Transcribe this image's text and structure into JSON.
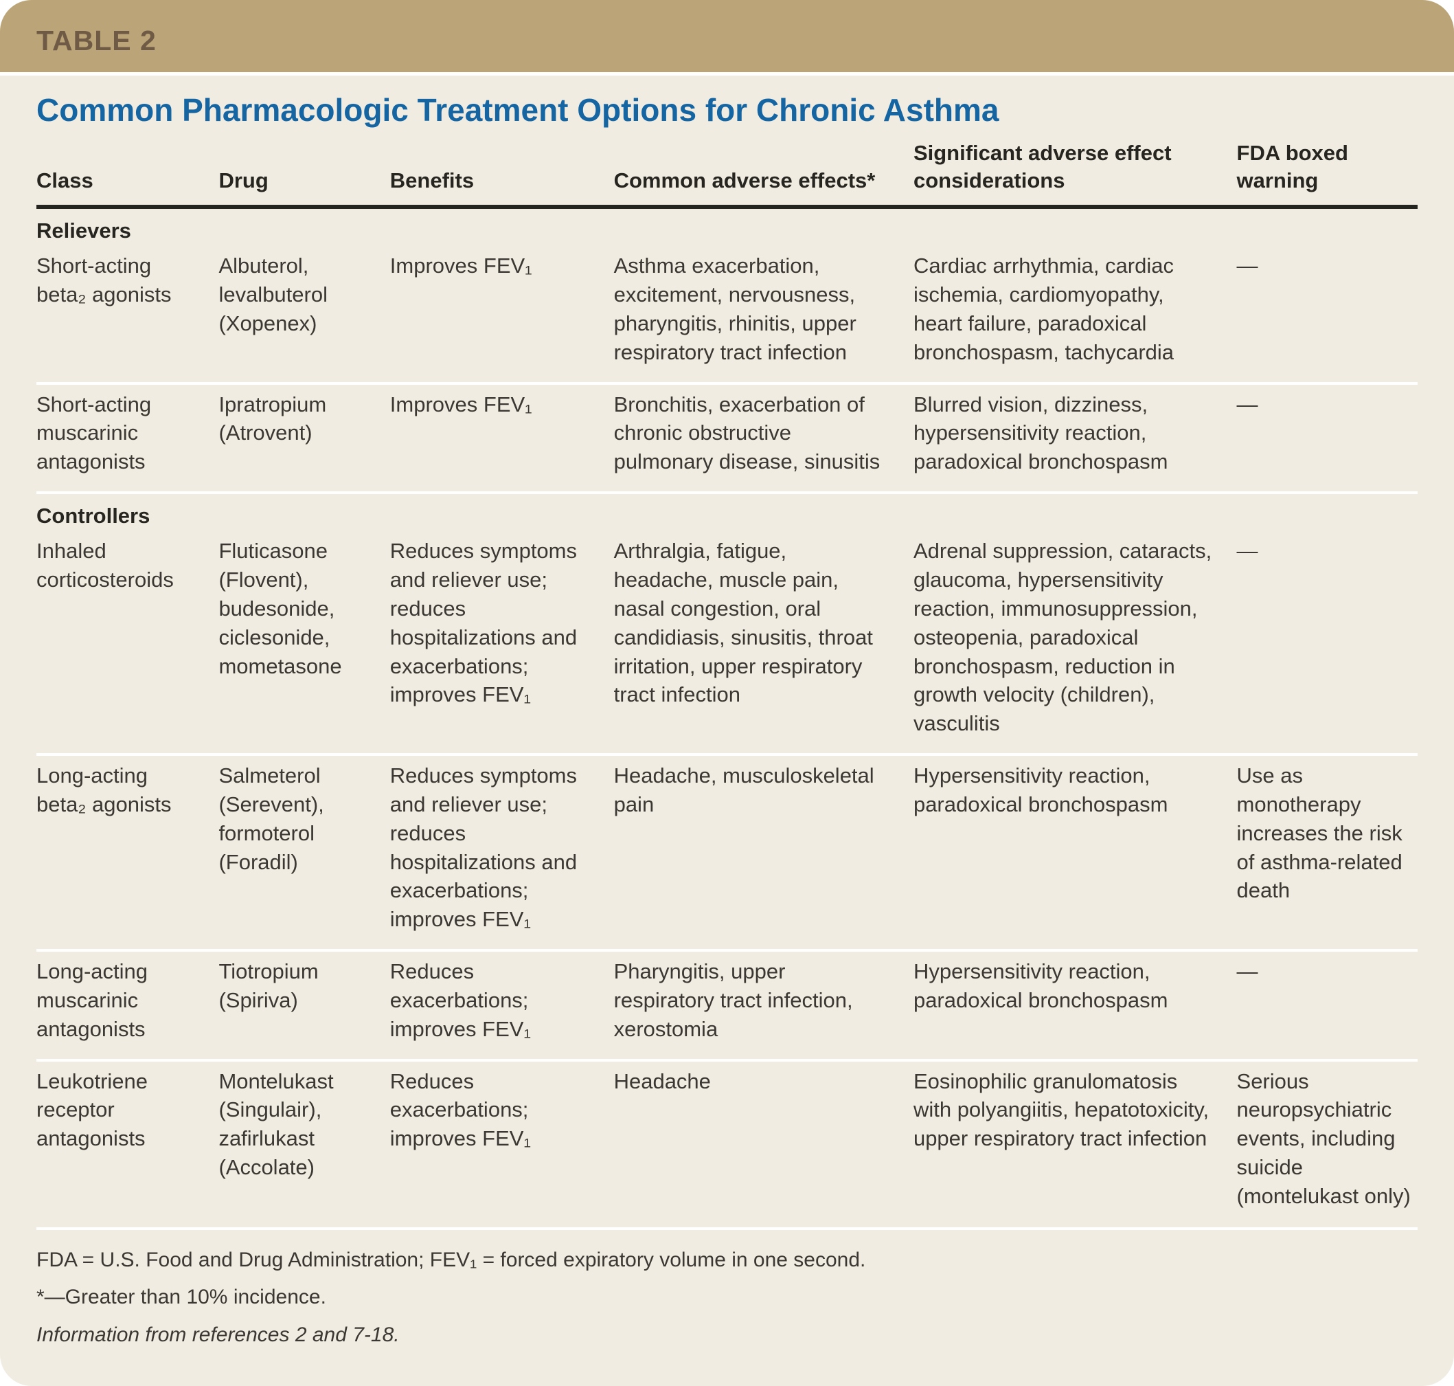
{
  "table_label": "TABLE 2",
  "title": "Common Pharmacologic Treatment Options for Chronic Asthma",
  "colors": {
    "band_bg": "#bba478",
    "band_text": "#6f5a45",
    "card_bg": "#f1ece1",
    "title_blue": "#1565a3",
    "heading_text": "#272520",
    "body_text": "#3b3833",
    "rule_dark": "#26241f",
    "rule_white": "#ffffff",
    "page_bg": "#ffffff"
  },
  "columns": [
    {
      "key": "class",
      "label": "Class"
    },
    {
      "key": "drug",
      "label": "Drug"
    },
    {
      "key": "benefits",
      "label": "Benefits"
    },
    {
      "key": "adverse_effects",
      "label": "Common adverse effects*"
    },
    {
      "key": "considerations",
      "label": "Significant adverse effect considerations"
    },
    {
      "key": "fda_warning",
      "label": "FDA boxed warning"
    }
  ],
  "sections": [
    {
      "name": "Relievers",
      "rows": [
        {
          "class": "Short-acting beta₂ agonists",
          "drug": "Albuterol, levalbuterol (Xopenex)",
          "benefits": "Improves FEV₁",
          "adverse_effects": "Asthma exacerbation, excitement, nervousness, pharyngitis, rhinitis, upper respiratory tract infection",
          "considerations": "Cardiac arrhythmia, cardiac ischemia, cardiomyopathy, heart failure, paradoxical bronchospasm, tachycardia",
          "fda_warning": "—"
        },
        {
          "class": "Short-acting muscarinic antagonists",
          "drug": "Ipratropium (Atrovent)",
          "benefits": "Improves FEV₁",
          "adverse_effects": "Bronchitis, exacerbation of chronic obstructive pulmonary disease, sinusitis",
          "considerations": "Blurred vision, dizziness, hypersensitivity reaction, paradoxical bronchospasm",
          "fda_warning": "—"
        }
      ]
    },
    {
      "name": "Controllers",
      "rows": [
        {
          "class": "Inhaled corticosteroids",
          "drug": "Fluticasone (Flovent), budesonide, ciclesonide, mometasone",
          "benefits": "Reduces symptoms and reliever use; reduces hospitalizations and exacerbations; improves FEV₁",
          "adverse_effects": "Arthralgia, fatigue, headache, muscle pain, nasal congestion, oral candidiasis, sinusitis, throat irritation, upper respiratory tract infection",
          "considerations": "Adrenal suppression, cataracts, glaucoma, hypersensitivity reaction, immunosuppression, osteopenia, paradoxical bronchospasm, reduction in growth velocity (children), vasculitis",
          "fda_warning": "—"
        },
        {
          "class": "Long-acting beta₂ agonists",
          "drug": "Salmeterol (Serevent), formoterol (Foradil)",
          "benefits": "Reduces symptoms and reliever use; reduces hospitalizations and exacerbations; improves FEV₁",
          "adverse_effects": "Headache, musculoskeletal pain",
          "considerations": "Hypersensitivity reaction, paradoxical bronchospasm",
          "fda_warning": "Use as monotherapy increases the risk of asthma-related death"
        },
        {
          "class": "Long-acting muscarinic antagonists",
          "drug": "Tiotropium (Spiriva)",
          "benefits": "Reduces exacerbations; improves FEV₁",
          "adverse_effects": "Pharyngitis, upper respiratory tract infection, xerostomia",
          "considerations": "Hypersensitivity reaction, paradoxical bronchospasm",
          "fda_warning": "—"
        },
        {
          "class": "Leukotriene receptor antagonists",
          "drug": "Montelukast (Singulair), zafirlukast (Accolate)",
          "benefits": "Reduces exacerbations; improves FEV₁",
          "adverse_effects": "Headache",
          "considerations": "Eosinophilic granulomatosis with polyangiitis, hepatotoxicity, upper respiratory tract infection",
          "fda_warning": "Serious neuropsychiatric events, including suicide (montelukast only)"
        }
      ]
    }
  ],
  "footnotes": {
    "abbreviations": "FDA = U.S. Food and Drug Administration; FEV₁ = forced expiratory volume in one second.",
    "asterisk": "*—Greater than 10% incidence.",
    "source": "Information from references 2 and 7-18."
  }
}
